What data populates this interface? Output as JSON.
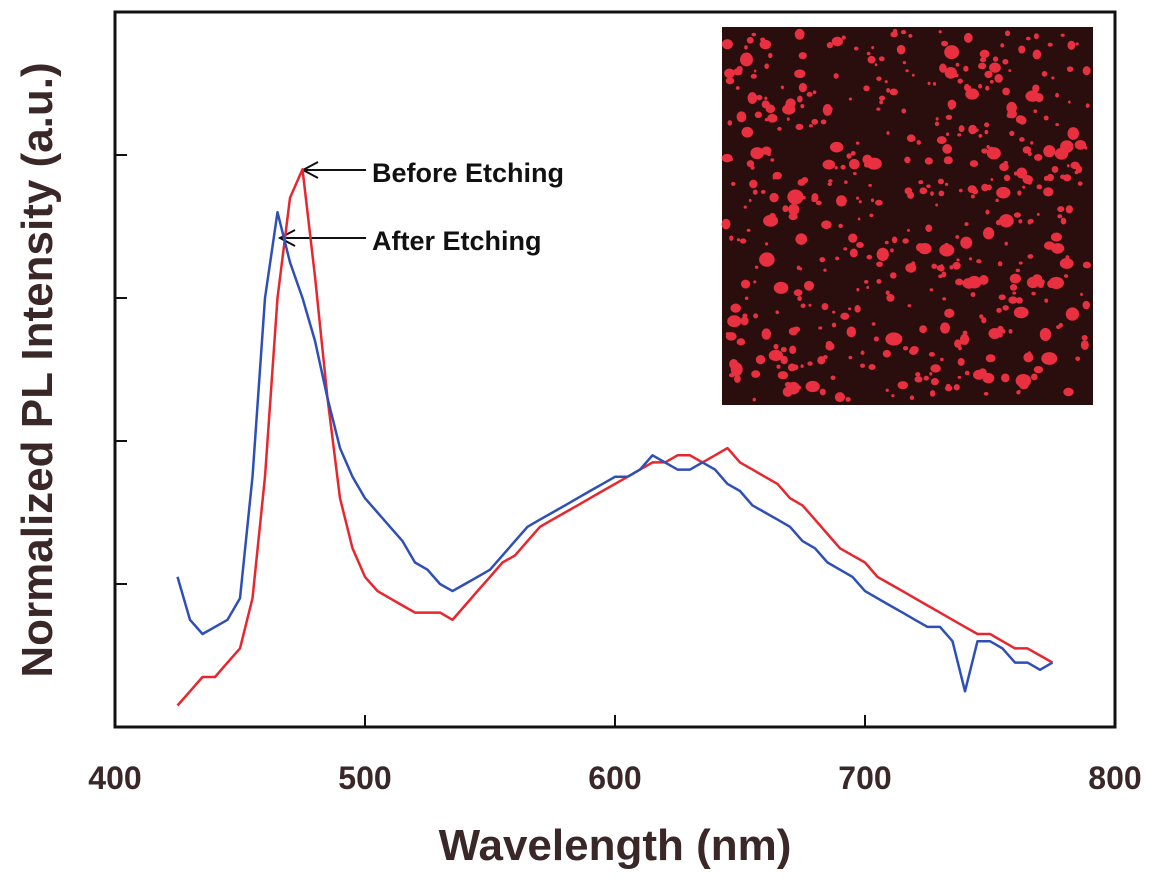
{
  "chart_data": {
    "type": "line",
    "x_label": "Wavelength (nm)",
    "y_label": "Normalized PL Intensity (a.u.)",
    "xlim": [
      400,
      800
    ],
    "xticks": [
      400,
      500,
      600,
      700,
      800
    ],
    "ylim": [
      0,
      1
    ],
    "yticks": [
      0.2,
      0.4,
      0.6,
      0.8
    ],
    "x": [
      425,
      430,
      435,
      440,
      445,
      450,
      455,
      460,
      465,
      470,
      475,
      480,
      485,
      490,
      495,
      500,
      505,
      510,
      515,
      520,
      525,
      530,
      535,
      540,
      545,
      550,
      555,
      560,
      565,
      570,
      575,
      580,
      585,
      590,
      595,
      600,
      605,
      610,
      615,
      620,
      625,
      630,
      635,
      640,
      645,
      650,
      655,
      660,
      665,
      670,
      675,
      680,
      685,
      690,
      695,
      700,
      705,
      710,
      715,
      720,
      725,
      730,
      735,
      740,
      745,
      750,
      755,
      760,
      765,
      770,
      775
    ],
    "series": [
      {
        "name": "Before Etching",
        "color": "#e8262e",
        "values": [
          0.03,
          0.05,
          0.07,
          0.07,
          0.09,
          0.11,
          0.18,
          0.35,
          0.6,
          0.74,
          0.78,
          0.63,
          0.46,
          0.32,
          0.25,
          0.21,
          0.19,
          0.18,
          0.17,
          0.16,
          0.16,
          0.16,
          0.15,
          0.17,
          0.19,
          0.21,
          0.23,
          0.24,
          0.26,
          0.28,
          0.29,
          0.3,
          0.31,
          0.32,
          0.33,
          0.34,
          0.35,
          0.36,
          0.37,
          0.37,
          0.38,
          0.38,
          0.37,
          0.38,
          0.39,
          0.37,
          0.36,
          0.35,
          0.34,
          0.32,
          0.31,
          0.29,
          0.27,
          0.25,
          0.24,
          0.23,
          0.21,
          0.2,
          0.19,
          0.18,
          0.17,
          0.16,
          0.15,
          0.14,
          0.13,
          0.13,
          0.12,
          0.11,
          0.11,
          0.1,
          0.09
        ]
      },
      {
        "name": "After Etching",
        "color": "#2f4fb8",
        "values": [
          0.21,
          0.15,
          0.13,
          0.14,
          0.15,
          0.18,
          0.35,
          0.6,
          0.72,
          0.65,
          0.6,
          0.54,
          0.46,
          0.39,
          0.35,
          0.32,
          0.3,
          0.28,
          0.26,
          0.23,
          0.22,
          0.2,
          0.19,
          0.2,
          0.21,
          0.22,
          0.24,
          0.26,
          0.28,
          0.29,
          0.3,
          0.31,
          0.32,
          0.33,
          0.34,
          0.35,
          0.35,
          0.36,
          0.38,
          0.37,
          0.36,
          0.36,
          0.37,
          0.36,
          0.34,
          0.33,
          0.31,
          0.3,
          0.29,
          0.28,
          0.26,
          0.25,
          0.23,
          0.22,
          0.21,
          0.19,
          0.18,
          0.17,
          0.16,
          0.15,
          0.14,
          0.14,
          0.12,
          0.05,
          0.12,
          0.12,
          0.11,
          0.09,
          0.09,
          0.08,
          0.09
        ]
      }
    ]
  }
}
